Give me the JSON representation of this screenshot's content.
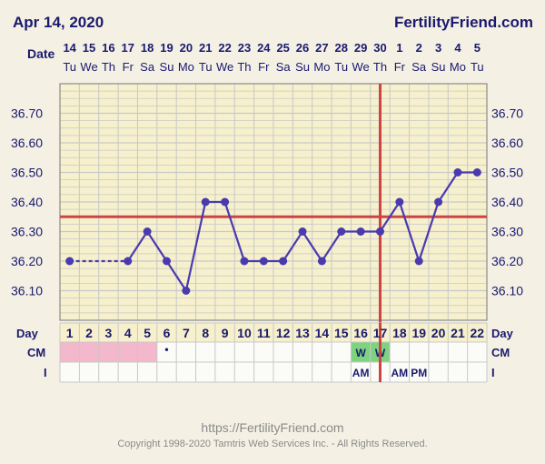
{
  "header": {
    "chart_date": "Apr 14, 2020",
    "site_name": "FertilityFriend.com",
    "date_label": "Date"
  },
  "footer": {
    "url": "https://FertilityFriend.com",
    "copyright": "Copyright 1998-2020 Tamtris Web Services Inc. - All Rights Reserved."
  },
  "chart_data": {
    "type": "line",
    "title": "",
    "dates": [
      "14",
      "15",
      "16",
      "17",
      "18",
      "19",
      "20",
      "21",
      "22",
      "23",
      "24",
      "25",
      "26",
      "27",
      "28",
      "29",
      "30",
      "1",
      "2",
      "3",
      "4",
      "5"
    ],
    "weekdays": [
      "Tu",
      "We",
      "Th",
      "Fr",
      "Sa",
      "Su",
      "Mo",
      "Tu",
      "We",
      "Th",
      "Fr",
      "Sa",
      "Su",
      "Mo",
      "Tu",
      "We",
      "Th",
      "Fr",
      "Sa",
      "Su",
      "Mo",
      "Tu"
    ],
    "cycle_days": [
      "1",
      "2",
      "3",
      "4",
      "5",
      "6",
      "7",
      "8",
      "9",
      "10",
      "11",
      "12",
      "13",
      "14",
      "15",
      "16",
      "17",
      "18",
      "19",
      "20",
      "21",
      "22"
    ],
    "day_label": "Day",
    "y_ticks": [
      "36.10",
      "36.20",
      "36.30",
      "36.40",
      "36.50",
      "36.60",
      "36.70"
    ],
    "ylim": [
      36.0,
      36.8
    ],
    "series": [
      {
        "x": [
          1,
          4,
          5,
          6,
          7,
          8,
          9,
          10,
          11,
          12,
          13,
          14,
          15,
          16,
          17,
          18,
          19,
          20,
          21,
          22
        ],
        "values": [
          36.2,
          36.2,
          36.3,
          36.2,
          36.1,
          36.4,
          36.4,
          36.2,
          36.2,
          36.2,
          36.3,
          36.2,
          36.3,
          36.3,
          36.3,
          36.4,
          36.2,
          36.4,
          36.5,
          36.5
        ],
        "color": "#4a3ab0"
      }
    ],
    "dashed_segment": [
      1,
      4
    ],
    "coverline": 36.35,
    "ovulation_day": 17,
    "rows": {
      "cm_label": "CM",
      "i_label": "I",
      "cm_period_days": [
        1,
        2,
        3,
        4,
        5
      ],
      "cm_period_color": "#f4b8cc",
      "cm_dot_day": 6,
      "cm_dot": "•",
      "cm_marks": [
        {
          "day": 16,
          "text": "W"
        },
        {
          "day": 17,
          "text": "W"
        }
      ],
      "cm_mark_color": "#7ed37e",
      "i_marks": [
        {
          "day": 16,
          "text": "AM"
        },
        {
          "day": 18,
          "text": "AM"
        },
        {
          "day": 19,
          "text": "PM"
        }
      ]
    },
    "colors": {
      "plot_bg": "#f6f0cc",
      "grid": "#c8c8c8",
      "coverline": "#cc4444",
      "line": "#4a3ab0",
      "text": "#1a1a6e"
    }
  }
}
